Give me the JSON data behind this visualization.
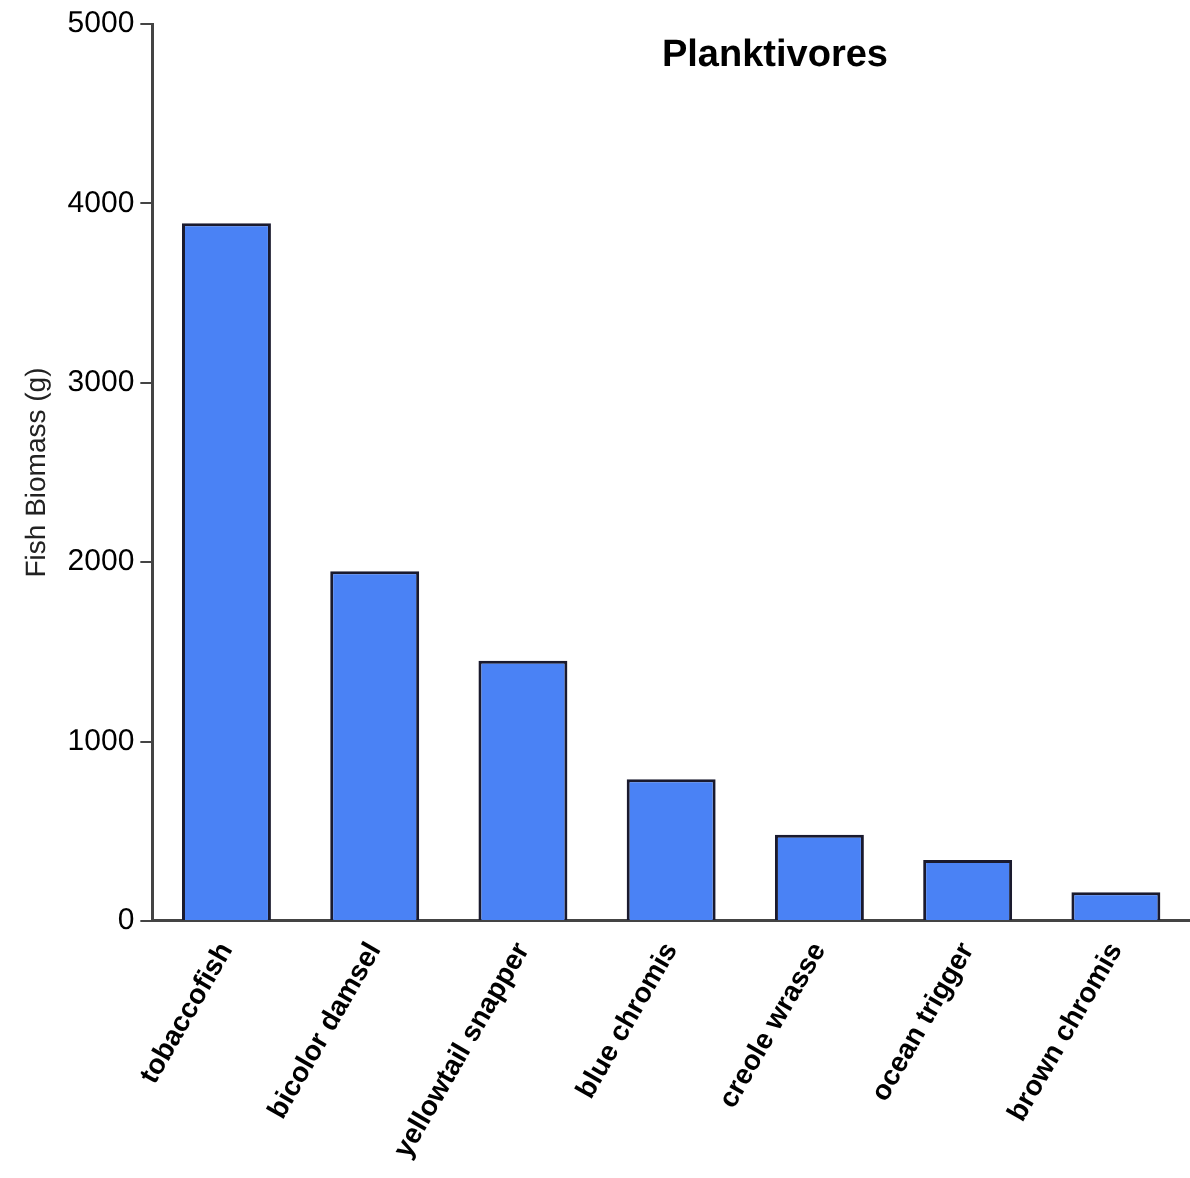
{
  "chart_data": {
    "type": "bar",
    "title": "Planktivores",
    "ylabel": "Fish Biomass (g)",
    "categories": [
      "tobaccofish",
      "bicolor damsel",
      "yellowtail snapper",
      "blue chromis",
      "creole wrasse",
      "ocean trigger",
      "brown chromis"
    ],
    "values": [
      3890,
      1950,
      1450,
      790,
      480,
      340,
      160
    ],
    "color": "#4a82f5",
    "ylim": [
      0,
      5000
    ],
    "yticks": [
      0,
      1000,
      2000,
      3000,
      4000,
      5000
    ],
    "grid": false,
    "legend": false
  }
}
